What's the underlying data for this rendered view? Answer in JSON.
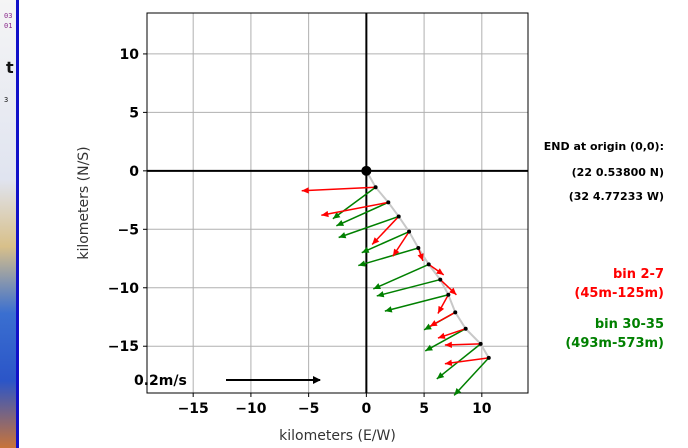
{
  "side_strip": {
    "fragments": [
      "03",
      "01",
      "t",
      "3"
    ]
  },
  "chart_data": {
    "type": "quiver",
    "xlabel": "kilometers (E/W)",
    "ylabel": "kilometers (N/S)",
    "xlim": [
      -19,
      14
    ],
    "ylim": [
      -19,
      13.5
    ],
    "xticks": [
      -15,
      -10,
      -5,
      0,
      5,
      10
    ],
    "yticks": [
      -15,
      -10,
      -5,
      0,
      5,
      10
    ],
    "grid": true,
    "origin_marker": [
      0,
      0
    ],
    "annotations": [
      "END at origin (0,0):",
      "(22 0.53800 N)",
      "(32 4.77233 W)"
    ],
    "legend": [
      {
        "label": "bin 2-7",
        "range": "(45m-125m)",
        "color": "#ff0000"
      },
      {
        "label": "bin 30-35",
        "range": "(493m-573m)",
        "color": "#008000"
      }
    ],
    "scale_label": "0.2m/s",
    "track": [
      [
        0,
        0
      ],
      [
        0.8,
        -1.4
      ],
      [
        1.9,
        -2.7
      ],
      [
        2.8,
        -3.9
      ],
      [
        3.7,
        -5.2
      ],
      [
        4.5,
        -6.6
      ],
      [
        5.4,
        -8
      ],
      [
        6.4,
        -9.3
      ],
      [
        7.1,
        -10.6
      ],
      [
        7.7,
        -12.1
      ],
      [
        8.6,
        -13.5
      ],
      [
        9.9,
        -14.8
      ],
      [
        10.6,
        -16
      ]
    ],
    "series": [
      {
        "name": "bin 2-7",
        "color": "#ff0000",
        "vectors": [
          [
            0.8,
            -1.4,
            -6.4,
            -0.3
          ],
          [
            1.9,
            -2.7,
            -5.8,
            -1.1
          ],
          [
            2.8,
            -3.9,
            -2.3,
            -2.4
          ],
          [
            3.7,
            -5.2,
            -1.4,
            -2.1
          ],
          [
            4.5,
            -6.6,
            0.4,
            -1.1
          ],
          [
            5.4,
            -8,
            1.3,
            -0.9
          ],
          [
            6.4,
            -9.3,
            1.4,
            -1.3
          ],
          [
            7.1,
            -10.6,
            -0.9,
            -1.6
          ],
          [
            7.7,
            -12.1,
            -2.2,
            -1.2
          ],
          [
            8.6,
            -13.5,
            -2.4,
            -0.8
          ],
          [
            9.9,
            -14.8,
            -3.1,
            -0.1
          ],
          [
            10.6,
            -16,
            -3.8,
            -0.5
          ]
        ]
      },
      {
        "name": "bin 30-35",
        "color": "#008000",
        "vectors": [
          [
            0.8,
            -1.4,
            -3.7,
            -2.7
          ],
          [
            1.9,
            -2.7,
            -4.5,
            -2.0
          ],
          [
            2.8,
            -3.9,
            -5.2,
            -1.8
          ],
          [
            3.7,
            -5.2,
            -4.1,
            -1.8
          ],
          [
            4.5,
            -6.6,
            -5.2,
            -1.5
          ],
          [
            5.4,
            -8,
            -4.8,
            -2.1
          ],
          [
            6.4,
            -9.3,
            -5.5,
            -1.4
          ],
          [
            7.1,
            -10.6,
            -5.5,
            -1.4
          ],
          [
            7.7,
            -12.1,
            -2.7,
            -1.5
          ],
          [
            8.6,
            -13.5,
            -3.5,
            -1.9
          ],
          [
            9.9,
            -14.8,
            -3.8,
            -3.0
          ],
          [
            10.6,
            -16,
            -3.0,
            -3.2
          ]
        ]
      }
    ]
  }
}
